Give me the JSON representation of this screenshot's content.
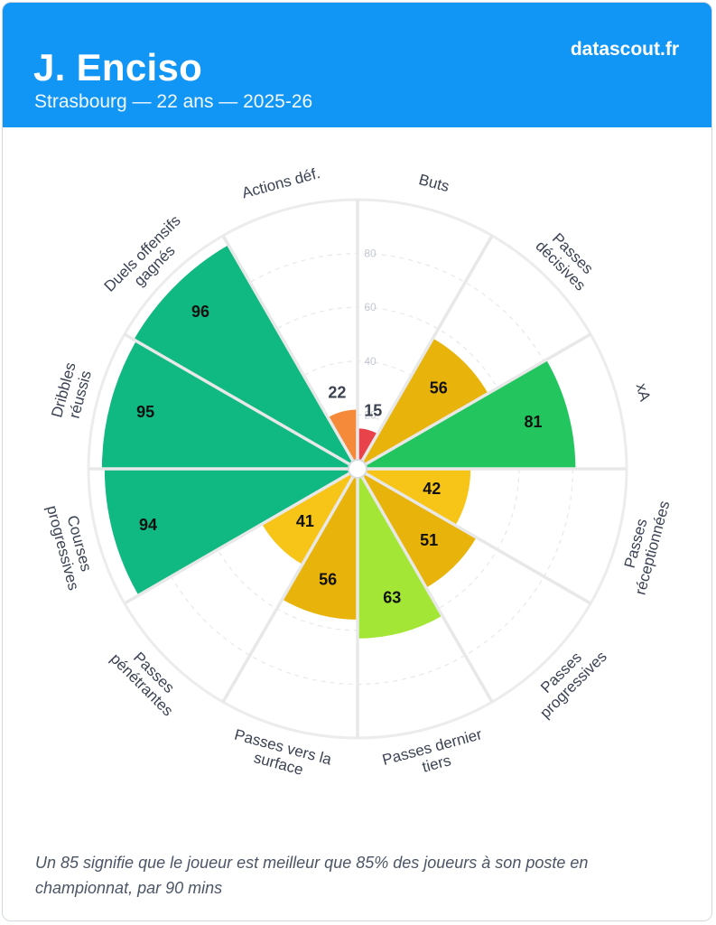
{
  "header": {
    "name": "J. Enciso",
    "subtitle": "Strasbourg — 22 ans — 2025-26",
    "source": "datascout.fr",
    "background": "#1296f5"
  },
  "chart_data": {
    "type": "radar-bar",
    "title": "J. Enciso",
    "rlim": [
      0,
      100
    ],
    "rticks": [
      20,
      40,
      60,
      80
    ],
    "grid": true,
    "categories": [
      {
        "label": [
          "Buts"
        ],
        "value": 15,
        "color": "#e8434a"
      },
      {
        "label": [
          "Passes",
          "décisives"
        ],
        "value": null,
        "color": null
      },
      {
        "label": [
          "Passes",
          "décisives"
        ],
        "value": 56,
        "color": "#e8b40c"
      },
      {
        "label": [
          "xA"
        ],
        "value": 81,
        "color": "#22c55e"
      },
      {
        "label": [
          "Passes",
          "réceptionnées"
        ],
        "value": 42,
        "color": "#f7c518"
      },
      {
        "label": [
          "Passes",
          "progressives"
        ],
        "value": 51,
        "color": "#e8b40c"
      },
      {
        "label": [
          "Passes dernier",
          "tiers"
        ],
        "value": 63,
        "color": "#a3e635"
      },
      {
        "label": [
          "Passes vers la",
          "surface"
        ],
        "value": 56,
        "color": "#e8b40c"
      },
      {
        "label": [
          "Passes",
          "pénétrantes"
        ],
        "value": 41,
        "color": "#f7c518"
      },
      {
        "label": [
          "Courses",
          "progressives"
        ],
        "value": 94,
        "color": "#10b981"
      },
      {
        "label": [
          "Dribbles",
          "réussis"
        ],
        "value": 95,
        "color": "#10b981"
      },
      {
        "label": [
          "Duels offensifs",
          "gagnés"
        ],
        "value": 96,
        "color": "#10b981"
      },
      {
        "label": [
          "Actions déf."
        ],
        "value": 22,
        "color": "#f58a3a"
      }
    ]
  },
  "footnote": "Un 85 signifie que le joueur est meilleur que 85% des joueurs à son poste en championnat, par 90 mins"
}
